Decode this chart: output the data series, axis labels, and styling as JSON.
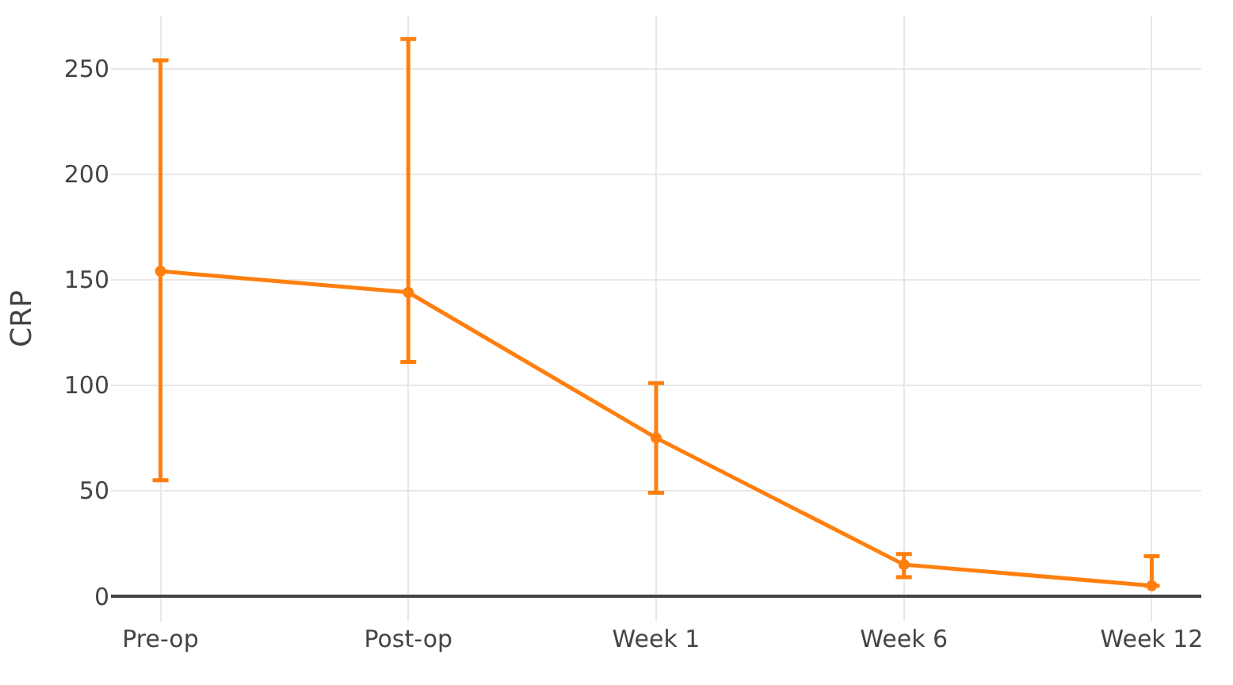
{
  "chart_data": {
    "type": "line",
    "ylabel": "CRP",
    "categories": [
      "Pre-op",
      "Post-op",
      "Week 1",
      "Week 6",
      "Week 12"
    ],
    "series": [
      {
        "color": "#ff7f0e",
        "values": [
          154,
          144,
          75,
          15,
          5
        ],
        "errors": [
          [
            55,
            254
          ],
          [
            111,
            264
          ],
          [
            49,
            101
          ],
          [
            9,
            20
          ],
          [
            5,
            19
          ]
        ]
      }
    ],
    "ylim": [
      -12,
      275
    ],
    "yticks": [
      0,
      50,
      100,
      150,
      200,
      250
    ],
    "grid": true,
    "marker": "circle",
    "line_style": "solid",
    "legend": false
  }
}
